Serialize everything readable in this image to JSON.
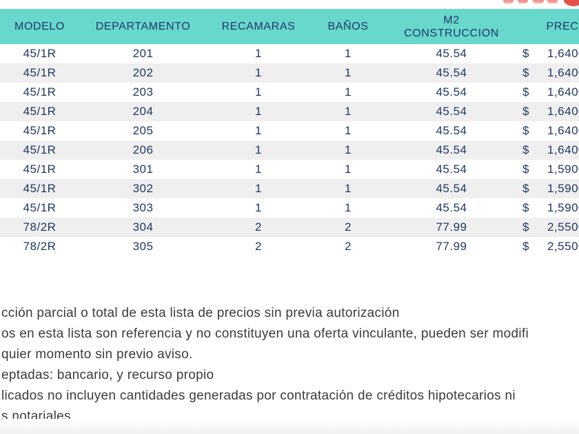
{
  "table": {
    "columns": [
      {
        "label": "MODELO"
      },
      {
        "label": "DEPARTAMENTO"
      },
      {
        "label": "RECAMARAS"
      },
      {
        "label": "BAÑOS"
      },
      {
        "label": "M2 CONSTRUCCION",
        "line1": "M2",
        "line2": "CONSTRUCCION"
      },
      {
        "label": "PRECIO"
      }
    ],
    "currency_symbol": "$",
    "price_partial_digit": "0",
    "rows": [
      {
        "modelo": "45/1R",
        "departamento": "201",
        "recamaras": "1",
        "banos": "1",
        "m2_construccion": "45.54",
        "precio": "1,640"
      },
      {
        "modelo": "45/1R",
        "departamento": "202",
        "recamaras": "1",
        "banos": "1",
        "m2_construccion": "45.54",
        "precio": "1,640"
      },
      {
        "modelo": "45/1R",
        "departamento": "203",
        "recamaras": "1",
        "banos": "1",
        "m2_construccion": "45.54",
        "precio": "1,640"
      },
      {
        "modelo": "45/1R",
        "departamento": "204",
        "recamaras": "1",
        "banos": "1",
        "m2_construccion": "45.54",
        "precio": "1,640"
      },
      {
        "modelo": "45/1R",
        "departamento": "205",
        "recamaras": "1",
        "banos": "1",
        "m2_construccion": "45.54",
        "precio": "1,640"
      },
      {
        "modelo": "45/1R",
        "departamento": "206",
        "recamaras": "1",
        "banos": "1",
        "m2_construccion": "45.54",
        "precio": "1,640"
      },
      {
        "modelo": "45/1R",
        "departamento": "301",
        "recamaras": "1",
        "banos": "1",
        "m2_construccion": "45.54",
        "precio": "1,590"
      },
      {
        "modelo": "45/1R",
        "departamento": "302",
        "recamaras": "1",
        "banos": "1",
        "m2_construccion": "45.54",
        "precio": "1,590"
      },
      {
        "modelo": "45/1R",
        "departamento": "303",
        "recamaras": "1",
        "banos": "1",
        "m2_construccion": "45.54",
        "precio": "1,590"
      },
      {
        "modelo": "78/2R",
        "departamento": "304",
        "recamaras": "2",
        "banos": "2",
        "m2_construccion": "77.99",
        "precio": "2,550"
      },
      {
        "modelo": "78/2R",
        "departamento": "305",
        "recamaras": "2",
        "banos": "2",
        "m2_construccion": "77.99",
        "precio": "2,550"
      }
    ]
  },
  "footer": {
    "lines": [
      "cción parcial o total de esta lista de precios sin previa autorización",
      "os en esta lista son referencia y no constituyen una oferta vinculante, pueden ser modifi",
      "quier momento sin previo aviso.",
      "eptadas: bancario, y recurso propio",
      "licados no incluyen cantidades generadas por contratación de créditos hipotecarios ni",
      "s notariales"
    ]
  },
  "colors": {
    "header_bg": "#68d7cc",
    "table_text": "#1f3864",
    "row_alt_bg": "#efefef",
    "footer_text": "#3b3b3b",
    "logo_red": "#e25149",
    "logo_pink": "#f6b5af",
    "logo_pink_dark": "#ee8d85"
  }
}
